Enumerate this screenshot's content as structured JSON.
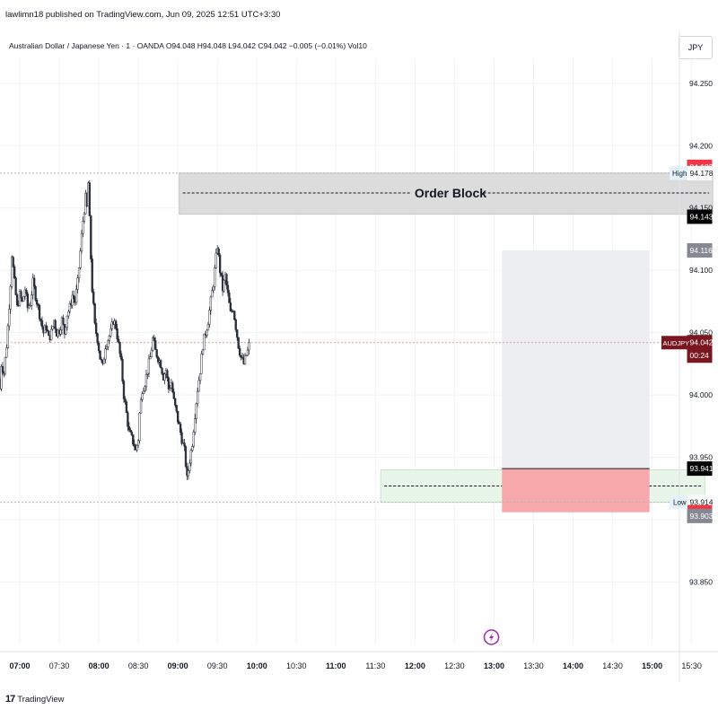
{
  "header": {
    "published": "lawlimn18 published on TradingView.com, Jun 09, 2025 12:51 UTC+3:30",
    "legend": "Australian Dollar / Japanese Yen · 1 · OANDA  O94.048  H94.048  L94.042  C94.042  −0.005 (−0.01%)  Vol10",
    "currency_button": "JPY"
  },
  "footer": {
    "brand": "TradingView",
    "logo_text": "17"
  },
  "colors": {
    "candle": "#2a2e39",
    "order_block": "#dcdcdc",
    "demand_zone": "#e8f5e9",
    "target_box": "#eceef1",
    "stop_box": "#f7a8ab",
    "current_price_tag": "#7a1620",
    "red_tag": "#f23645",
    "gray_tag": "#868993",
    "black_tag": "#000000"
  },
  "chart_data": {
    "type": "candlestick",
    "symbol": "AUDJPY",
    "timeframe": "1",
    "exchange": "OANDA",
    "y_axis": {
      "range": [
        93.8,
        94.27
      ],
      "ticks": [
        "94.250",
        "94.200",
        "94.150",
        "94.100",
        "94.050",
        "94.000",
        "93.950",
        "93.900",
        "93.850"
      ]
    },
    "x_axis": {
      "range": [
        405,
        950
      ],
      "ticks": [
        {
          "label": "07:00",
          "t": 420,
          "bold": true
        },
        {
          "label": "07:30",
          "t": 450,
          "bold": false
        },
        {
          "label": "08:00",
          "t": 480,
          "bold": true
        },
        {
          "label": "08:30",
          "t": 510,
          "bold": false
        },
        {
          "label": "09:00",
          "t": 540,
          "bold": true
        },
        {
          "label": "09:30",
          "t": 570,
          "bold": false
        },
        {
          "label": "10:00",
          "t": 600,
          "bold": true
        },
        {
          "label": "10:30",
          "t": 630,
          "bold": false
        },
        {
          "label": "11:00",
          "t": 660,
          "bold": true
        },
        {
          "label": "11:30",
          "t": 690,
          "bold": false
        },
        {
          "label": "12:00",
          "t": 720,
          "bold": true
        },
        {
          "label": "12:30",
          "t": 750,
          "bold": false
        },
        {
          "label": "13:00",
          "t": 780,
          "bold": true
        },
        {
          "label": "13:30",
          "t": 810,
          "bold": false
        },
        {
          "label": "14:00",
          "t": 840,
          "bold": true
        },
        {
          "label": "14:30",
          "t": 870,
          "bold": false
        },
        {
          "label": "15:00",
          "t": 900,
          "bold": true
        },
        {
          "label": "15:30",
          "t": 930,
          "bold": false
        }
      ]
    },
    "price_path": [
      [
        404,
        94.012
      ],
      [
        405,
        94.005
      ],
      [
        406,
        94.025
      ],
      [
        408,
        94.018
      ],
      [
        410,
        94.04
      ],
      [
        411,
        94.055
      ],
      [
        413,
        94.09
      ],
      [
        414,
        94.113
      ],
      [
        416,
        94.09
      ],
      [
        418,
        94.07
      ],
      [
        420,
        94.08
      ],
      [
        422,
        94.074
      ],
      [
        424,
        94.085
      ],
      [
        426,
        94.07
      ],
      [
        428,
        94.074
      ],
      [
        430,
        94.09
      ],
      [
        432,
        94.08
      ],
      [
        434,
        94.07
      ],
      [
        436,
        94.06
      ],
      [
        438,
        94.05
      ],
      [
        440,
        94.055
      ],
      [
        442,
        94.045
      ],
      [
        444,
        94.05
      ],
      [
        446,
        94.06
      ],
      [
        448,
        94.05
      ],
      [
        450,
        94.052
      ],
      [
        452,
        94.06
      ],
      [
        454,
        94.05
      ],
      [
        456,
        94.065
      ],
      [
        458,
        94.07
      ],
      [
        460,
        94.08
      ],
      [
        462,
        94.075
      ],
      [
        464,
        94.09
      ],
      [
        466,
        94.115
      ],
      [
        468,
        94.14
      ],
      [
        470,
        94.158
      ],
      [
        471,
        94.15
      ],
      [
        472,
        94.17
      ],
      [
        473,
        94.14
      ],
      [
        474,
        94.11
      ],
      [
        475,
        94.085
      ],
      [
        476,
        94.07
      ],
      [
        477,
        94.055
      ],
      [
        479,
        94.045
      ],
      [
        481,
        94.03
      ],
      [
        483,
        94.022
      ],
      [
        485,
        94.04
      ],
      [
        487,
        94.045
      ],
      [
        489,
        94.05
      ],
      [
        491,
        94.06
      ],
      [
        493,
        94.055
      ],
      [
        495,
        94.04
      ],
      [
        497,
        94.025
      ],
      [
        499,
        94.0
      ],
      [
        501,
        93.985
      ],
      [
        503,
        93.97
      ],
      [
        505,
        93.965
      ],
      [
        507,
        93.96
      ],
      [
        508,
        93.955
      ],
      [
        510,
        93.965
      ],
      [
        511,
        93.985
      ],
      [
        513,
        94.005
      ],
      [
        515,
        94.01
      ],
      [
        517,
        94.02
      ],
      [
        519,
        94.03
      ],
      [
        521,
        94.045
      ],
      [
        523,
        94.035
      ],
      [
        525,
        94.03
      ],
      [
        527,
        94.025
      ],
      [
        529,
        94.015
      ],
      [
        531,
        94.02
      ],
      [
        533,
        94.005
      ],
      [
        535,
        94.01
      ],
      [
        537,
        93.995
      ],
      [
        539,
        93.985
      ],
      [
        541,
        93.975
      ],
      [
        543,
        93.965
      ],
      [
        545,
        93.955
      ],
      [
        546,
        93.945
      ],
      [
        547,
        93.932
      ],
      [
        549,
        93.948
      ],
      [
        551,
        93.962
      ],
      [
        553,
        93.985
      ],
      [
        555,
        94.005
      ],
      [
        557,
        94.02
      ],
      [
        559,
        94.04
      ],
      [
        561,
        94.05
      ],
      [
        563,
        94.06
      ],
      [
        565,
        94.075
      ],
      [
        567,
        94.09
      ],
      [
        569,
        94.11
      ],
      [
        570,
        94.12
      ],
      [
        572,
        94.1
      ],
      [
        574,
        94.085
      ],
      [
        576,
        94.095
      ],
      [
        578,
        94.08
      ],
      [
        580,
        94.065
      ],
      [
        582,
        94.07
      ],
      [
        584,
        94.055
      ],
      [
        586,
        94.04
      ],
      [
        588,
        94.03
      ],
      [
        590,
        94.025
      ],
      [
        592,
        94.032
      ],
      [
        593,
        94.035
      ],
      [
        594,
        94.04
      ]
    ],
    "zones": [
      {
        "label": "Order Block",
        "t1": 541,
        "t2": 946,
        "y1": 94.145,
        "y2": 94.178,
        "dashed_mid": 94.162,
        "kind": "supply"
      },
      {
        "label": "",
        "t1": 694,
        "t2": 940,
        "y1": 93.914,
        "y2": 93.94,
        "dashed_mid": 93.927,
        "kind": "demand"
      }
    ],
    "position": {
      "t1": 786,
      "t2": 898,
      "entry": 93.941,
      "target": 94.116,
      "stop": 93.906
    },
    "horizontal_lines": [
      {
        "price": 94.178,
        "label": "High"
      },
      {
        "price": 93.914,
        "label": "Low"
      },
      {
        "price": 94.042,
        "label": "current"
      }
    ],
    "price_tags": [
      {
        "id": "tag-94183",
        "price": 94.183,
        "text": "94.183",
        "kind": "red"
      },
      {
        "id": "tag-94178",
        "price": 94.178,
        "text": "94.178",
        "kind": "light"
      },
      {
        "id": "tag-94143",
        "price": 94.143,
        "text": "94.143",
        "kind": "black"
      },
      {
        "id": "tag-94116",
        "price": 94.116,
        "text": "94.116",
        "kind": "gray"
      },
      {
        "id": "tag-94042",
        "price": 94.042,
        "text": "94.042",
        "sub": "00:24",
        "kind": "current"
      },
      {
        "id": "tag-93941",
        "price": 93.941,
        "text": "93.941",
        "kind": "black"
      },
      {
        "id": "tag-93914",
        "price": 93.914,
        "text": "93.914",
        "kind": "light"
      },
      {
        "id": "tag-93906",
        "price": 93.906,
        "text": "93.906",
        "kind": "red"
      },
      {
        "id": "tag-93903",
        "price": 93.903,
        "text": "93.903",
        "kind": "gray"
      }
    ],
    "line_labels": {
      "high": "High",
      "low": "Low",
      "symbol_tag": "AUDJPY"
    },
    "marker_icon": "lightning-icon"
  }
}
